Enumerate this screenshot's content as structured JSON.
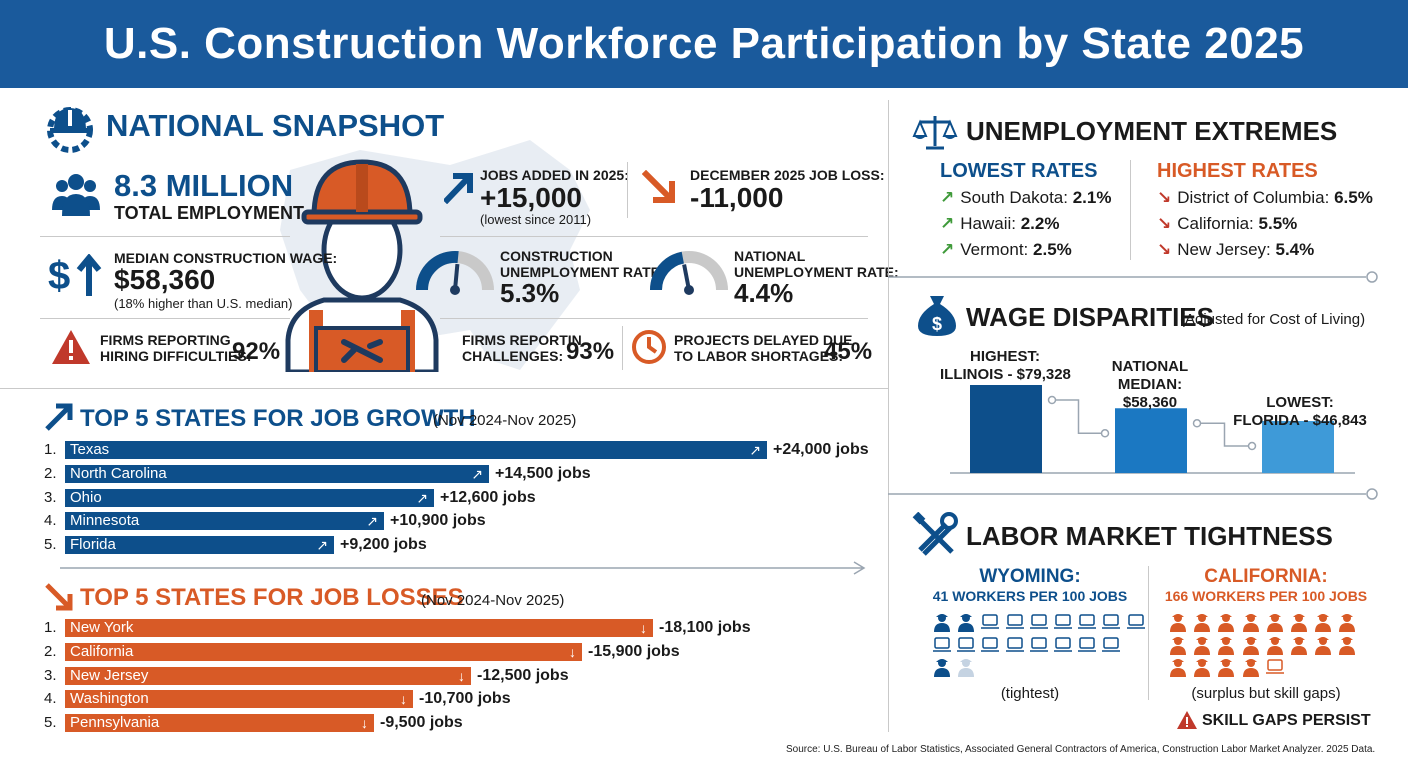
{
  "title": "U.S. Construction Workforce Participation by State 2025",
  "snapshot": {
    "heading": "NATIONAL SNAPSHOT",
    "total_employment_value": "8.3 MILLION",
    "total_employment_label": "TOTAL EMPLOYMENT",
    "jobs_added_label": "JOBS ADDED IN 2025:",
    "jobs_added_value": "+15,000",
    "jobs_added_note": "(lowest since 2011)",
    "dec_loss_label": "DECEMBER 2025 JOB LOSS:",
    "dec_loss_value": "-11,000",
    "median_wage_label": "MEDIAN CONSTRUCTION WAGE:",
    "median_wage_value": "$58,360",
    "median_wage_note": "(18% higher than U.S. median)",
    "constr_unemp_label_1": "CONSTRUCTION",
    "constr_unemp_label_2": "UNEMPLOYMENT RATE:",
    "constr_unemp_value": "5.3%",
    "nat_unemp_label_1": "NATIONAL",
    "nat_unemp_label_2": "UNEMPLOYMENT RATE:",
    "nat_unemp_value": "4.4%",
    "hiring_label_1": "FIRMS REPORTING",
    "hiring_label_2": "HIRING DIFFICULTIES:",
    "hiring_value": "92%",
    "challenges_label_1": "FIRMS REPORTIN",
    "challenges_label_2": "CHALLENGES:",
    "challenges_value": "93%",
    "delayed_label_1": "PROJECTS DELAYED DUE",
    "delayed_label_2": "TO LABOR SHORTAGES:",
    "delayed_value": "45%",
    "constr_unemp_gauge": 0.53,
    "nat_unemp_gauge": 0.44
  },
  "growth": {
    "heading": "TOP 5 STATES FOR JOB GROWTH",
    "period": "(Nov 2024-Nov 2025)",
    "rows": [
      {
        "rank": "1.",
        "state": "Texas",
        "value": 24000,
        "label": "+24,000 jobs"
      },
      {
        "rank": "2.",
        "state": "North Carolina",
        "value": 14500,
        "label": "+14,500 jobs"
      },
      {
        "rank": "3.",
        "state": "Ohio",
        "value": 12600,
        "label": "+12,600 jobs"
      },
      {
        "rank": "4.",
        "state": "Minnesota",
        "value": 10900,
        "label": "+10,900 jobs"
      },
      {
        "rank": "5.",
        "state": "Florida",
        "value": 9200,
        "label": "+9,200 jobs"
      }
    ]
  },
  "losses": {
    "heading": "TOP 5 STATES FOR JOB LOSSES",
    "period": "(Nov 2024-Nov 2025)",
    "rows": [
      {
        "rank": "1.",
        "state": "New York",
        "value": 18100,
        "label": "-18,100 jobs"
      },
      {
        "rank": "2.",
        "state": "California",
        "value": 15900,
        "label": "-15,900 jobs"
      },
      {
        "rank": "3.",
        "state": "New Jersey",
        "value": 12500,
        "label": "-12,500 jobs"
      },
      {
        "rank": "4.",
        "state": "Washington",
        "value": 10700,
        "label": "-10,700 jobs"
      },
      {
        "rank": "5.",
        "state": "Pennsylvania",
        "value": 9500,
        "label": "-9,500 jobs"
      }
    ]
  },
  "unemployment": {
    "heading": "UNEMPLOYMENT EXTREMES",
    "lowest_heading": "LOWEST RATES",
    "highest_heading": "HIGHEST RATES",
    "lowest": [
      {
        "state": "South Dakota:",
        "rate": "2.1%"
      },
      {
        "state": "Hawaii:",
        "rate": "2.2%"
      },
      {
        "state": "Vermont:",
        "rate": "2.5%"
      }
    ],
    "highest": [
      {
        "state": "District of Columbia:",
        "rate": "6.5%"
      },
      {
        "state": "California:",
        "rate": "5.5%"
      },
      {
        "state": "New Jersey:",
        "rate": "5.4%"
      }
    ]
  },
  "wages": {
    "heading": "WAGE DISPARITIES",
    "subheading": "(Adjusted for Cost of Living)",
    "highest_label_1": "HIGHEST:",
    "highest_label_2": "ILLINOIS - $79,328",
    "median_label_1": "NATIONAL",
    "median_label_2": "MEDIAN:",
    "median_label_3": "$58,360",
    "lowest_label_1": "LOWEST:",
    "lowest_label_2": "FLORIDA - $46,843"
  },
  "chart_data": {
    "type": "bar",
    "title": "WAGE DISPARITIES",
    "categories": [
      "ILLINOIS",
      "NATIONAL MEDIAN",
      "FLORIDA"
    ],
    "values": [
      79328,
      58360,
      46843
    ],
    "colors": [
      "#0d4f8b",
      "#1b78c2",
      "#3e9ad8"
    ]
  },
  "tightness": {
    "heading": "LABOR MARKET TIGHTNESS",
    "wy_title": "WYOMING:",
    "wy_sub": "41 WORKERS PER 100 JOBS",
    "wy_note": "(tightest)",
    "ca_title": "CALIFORNIA:",
    "ca_sub": "166 WORKERS PER 100 JOBS",
    "ca_note": "(surplus but skill gaps)",
    "warning": "SKILL GAPS PERSIST"
  },
  "source": "Source: U.S. Bureau of Labor Statistics, Associated General Contractors of America, Construction Labor Market Analyzer. 2025 Data.",
  "colors": {
    "blue": "#0d4f8b",
    "orange": "#d85a26",
    "title_bar": "#1a5a9c",
    "green_arrow": "#3f9a3a",
    "red_arrow": "#c0392b"
  }
}
